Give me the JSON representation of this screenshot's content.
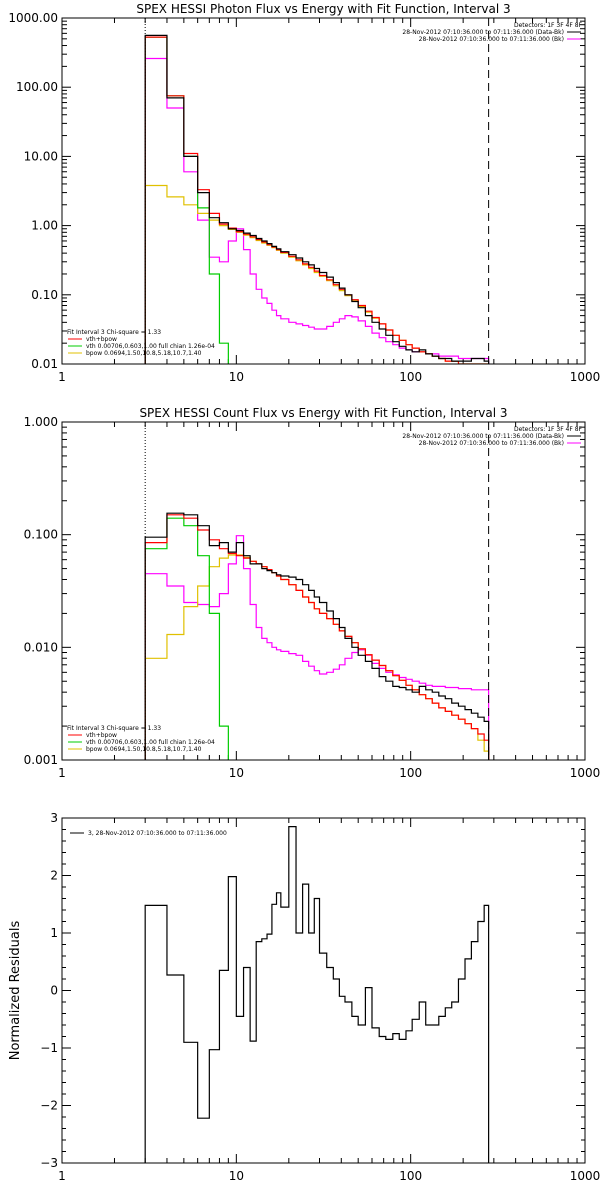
{
  "colors": {
    "data": "#000000",
    "total": "#ff0000",
    "vth": "#00cc00",
    "bpow": "#e0c000",
    "background": "#ff00ff",
    "axis": "#000000",
    "window": "#000000"
  },
  "chart_data": [
    {
      "type": "line",
      "title": "SPEX HESSI Photon Flux vs Energy with Fit Function, Interval 3",
      "xlabel": "",
      "ylabel": "",
      "xscale": "log",
      "yscale": "log",
      "xlim": [
        1,
        1000
      ],
      "ylim": [
        0.01,
        1000
      ],
      "x_ticks": [
        "1",
        "10",
        "100",
        "1000"
      ],
      "y_ticks": [
        "0.01",
        "0.10",
        "1.00",
        "10.00",
        "100.00",
        "1000.00"
      ],
      "legend_top_right": [
        "Detectors: 1F 3F 4F 8F",
        "28-Nov-2012 07:10:36.000 to 07:11:36.000 (Data-Bk)",
        "28-Nov-2012 07:10:36.000 to 07:11:36.000 (Bk)"
      ],
      "legend_bottom_left": [
        "Fit Interval 3   Chi-square = 1.33",
        "vth+bpow",
        "vth 0.00706,0.603,1.00  full chian 1.26e-04",
        "bpow 0.0694,1.50,10.8,5.18,10.7,1.40"
      ],
      "vlines": [
        {
          "x": 3,
          "style": "dotted"
        },
        {
          "x": 280,
          "style": "dashed"
        }
      ],
      "series": [
        {
          "name": "(Data-Bk)",
          "bins": [
            3,
            4,
            5,
            6,
            7,
            8,
            9,
            10,
            11,
            12,
            13,
            14,
            15,
            16,
            17,
            18,
            20,
            22,
            24,
            26,
            28,
            30,
            33,
            36,
            39,
            42,
            46,
            50,
            55,
            60,
            66,
            72,
            79,
            86,
            94,
            102,
            112,
            122,
            133,
            145,
            158,
            172,
            188,
            205,
            223,
            243,
            264,
            280
          ],
          "values": [
            560,
            70,
            10,
            3.0,
            1.3,
            1.1,
            0.9,
            0.85,
            0.78,
            0.72,
            0.65,
            0.6,
            0.55,
            0.5,
            0.46,
            0.42,
            0.38,
            0.34,
            0.3,
            0.27,
            0.24,
            0.21,
            0.18,
            0.15,
            0.125,
            0.1,
            0.08,
            0.065,
            0.05,
            0.04,
            0.032,
            0.026,
            0.021,
            0.018,
            0.016,
            0.015,
            0.016,
            0.014,
            0.013,
            0.012,
            0.012,
            0.011,
            0.011,
            0.011,
            0.012,
            0.012,
            0.011
          ]
        },
        {
          "name": "vth+bpow",
          "bins": [
            3,
            4,
            5,
            6,
            7,
            8,
            9,
            10,
            11,
            12,
            13,
            14,
            15,
            16,
            17,
            18,
            20,
            22,
            24,
            26,
            28,
            30,
            33,
            36,
            39,
            42,
            46,
            50,
            55,
            60,
            66,
            72,
            79,
            86,
            94,
            102,
            112,
            122,
            133,
            145,
            158,
            172,
            188,
            205,
            223,
            243,
            264,
            280
          ],
          "values": [
            530,
            75,
            11,
            3.3,
            1.5,
            1.05,
            0.92,
            0.82,
            0.75,
            0.69,
            0.63,
            0.58,
            0.53,
            0.49,
            0.45,
            0.41,
            0.36,
            0.32,
            0.28,
            0.25,
            0.22,
            0.19,
            0.165,
            0.14,
            0.12,
            0.1,
            0.085,
            0.07,
            0.058,
            0.047,
            0.038,
            0.031,
            0.026,
            0.022,
            0.019,
            0.017,
            0.015,
            0.014,
            0.013,
            0.012,
            0.011,
            0.011,
            0.01,
            0.01,
            0.01,
            0.01,
            0.01
          ]
        },
        {
          "name": "vth",
          "bins": [
            3,
            4,
            5,
            6,
            7,
            8,
            9
          ],
          "values": [
            530,
            75,
            10,
            1.8,
            0.2,
            0.02
          ]
        },
        {
          "name": "bpow",
          "bins": [
            3,
            4,
            5,
            6,
            7,
            8,
            9,
            10,
            11,
            12,
            13,
            14,
            15,
            16,
            17,
            18,
            20,
            22,
            24,
            26,
            28,
            30,
            33,
            36,
            39,
            42,
            46,
            50,
            55,
            60,
            66,
            72,
            79,
            86,
            94,
            102,
            112,
            122,
            133,
            145,
            158,
            172,
            188,
            205,
            223,
            243,
            264,
            280
          ],
          "values": [
            3.8,
            2.6,
            2.0,
            1.5,
            1.2,
            1.0,
            0.88,
            0.8,
            0.73,
            0.67,
            0.61,
            0.56,
            0.52,
            0.48,
            0.44,
            0.4,
            0.35,
            0.31,
            0.27,
            0.24,
            0.21,
            0.185,
            0.16,
            0.135,
            0.115,
            0.097,
            0.082,
            0.068,
            0.056,
            0.046,
            0.038,
            0.031,
            0.026,
            0.022,
            0.019,
            0.017,
            0.015,
            0.014,
            0.013,
            0.012,
            0.011,
            0.011,
            0.01,
            0.01,
            0.01,
            0.01,
            0.01
          ]
        },
        {
          "name": "(Bk)",
          "bins": [
            3,
            4,
            5,
            6,
            7,
            8,
            9,
            10,
            11,
            12,
            13,
            14,
            15,
            16,
            17,
            18,
            20,
            22,
            24,
            26,
            28,
            30,
            33,
            36,
            39,
            42,
            46,
            50,
            55,
            60,
            66,
            72,
            79,
            86,
            94,
            102,
            112,
            122,
            133,
            145,
            158,
            172,
            188,
            205,
            223,
            243,
            264,
            280
          ],
          "values": [
            260,
            50,
            6,
            1.2,
            0.35,
            0.3,
            0.6,
            0.9,
            0.45,
            0.2,
            0.12,
            0.09,
            0.075,
            0.06,
            0.05,
            0.045,
            0.04,
            0.038,
            0.036,
            0.034,
            0.032,
            0.032,
            0.035,
            0.04,
            0.045,
            0.05,
            0.048,
            0.042,
            0.035,
            0.028,
            0.024,
            0.021,
            0.019,
            0.017,
            0.016,
            0.015,
            0.015,
            0.014,
            0.014,
            0.013,
            0.013,
            0.013,
            0.012,
            0.012,
            0.012,
            0.012,
            0.012
          ]
        }
      ]
    },
    {
      "type": "line",
      "title": "SPEX HESSI Count Flux vs Energy with Fit Function, Interval 3",
      "xlabel": "",
      "ylabel": "",
      "xscale": "log",
      "yscale": "log",
      "xlim": [
        1,
        1000
      ],
      "ylim": [
        0.001,
        1
      ],
      "x_ticks": [
        "1",
        "10",
        "100",
        "1000"
      ],
      "y_ticks": [
        "0.001",
        "0.010",
        "0.100",
        "1.000"
      ],
      "legend_top_right": [
        "Detectors: 1F 3F 4F 8F",
        "28-Nov-2012 07:10:36.000 to 07:11:36.000 (Data-Bk)",
        "28-Nov-2012 07:10:36.000 to 07:11:36.000 (Bk)"
      ],
      "legend_bottom_left": [
        "Fit Interval 3   Chi-square = 1.33",
        "vth+bpow",
        "vth 0.00706,0.603,1.00  full chian 1.26e-04",
        "bpow 0.0694,1.50,10.8,5.18,10.7,1.40"
      ],
      "vlines": [
        {
          "x": 3,
          "style": "dotted"
        },
        {
          "x": 280,
          "style": "dashed"
        }
      ],
      "series": [
        {
          "name": "(Data-Bk)",
          "bins": [
            3,
            4,
            5,
            6,
            7,
            8,
            9,
            10,
            11,
            12,
            13,
            14,
            15,
            16,
            17,
            18,
            20,
            22,
            24,
            26,
            28,
            30,
            33,
            36,
            39,
            42,
            46,
            50,
            55,
            60,
            66,
            72,
            79,
            86,
            94,
            102,
            112,
            122,
            133,
            145,
            158,
            172,
            188,
            205,
            223,
            243,
            264,
            280
          ],
          "values": [
            0.095,
            0.155,
            0.15,
            0.12,
            0.08,
            0.085,
            0.07,
            0.085,
            0.065,
            0.055,
            0.055,
            0.05,
            0.048,
            0.046,
            0.044,
            0.043,
            0.042,
            0.04,
            0.036,
            0.032,
            0.028,
            0.025,
            0.021,
            0.018,
            0.015,
            0.012,
            0.01,
            0.0085,
            0.0075,
            0.0065,
            0.0055,
            0.005,
            0.0045,
            0.0044,
            0.0042,
            0.004,
            0.0045,
            0.0042,
            0.004,
            0.0037,
            0.0035,
            0.0032,
            0.003,
            0.0028,
            0.0026,
            0.0024,
            0.0022
          ]
        },
        {
          "name": "vth+bpow",
          "bins": [
            3,
            4,
            5,
            6,
            7,
            8,
            9,
            10,
            11,
            12,
            13,
            14,
            15,
            16,
            17,
            18,
            20,
            22,
            24,
            26,
            28,
            30,
            33,
            36,
            39,
            42,
            46,
            50,
            55,
            60,
            66,
            72,
            79,
            86,
            94,
            102,
            112,
            122,
            133,
            145,
            158,
            172,
            188,
            205,
            223,
            243,
            264,
            280
          ],
          "values": [
            0.085,
            0.15,
            0.14,
            0.11,
            0.09,
            0.075,
            0.068,
            0.065,
            0.062,
            0.058,
            0.055,
            0.052,
            0.049,
            0.046,
            0.043,
            0.04,
            0.036,
            0.032,
            0.028,
            0.025,
            0.022,
            0.02,
            0.018,
            0.016,
            0.014,
            0.0125,
            0.011,
            0.0097,
            0.0086,
            0.0077,
            0.0069,
            0.0062,
            0.0056,
            0.0051,
            0.0046,
            0.0042,
            0.0038,
            0.0035,
            0.0032,
            0.0029,
            0.0027,
            0.0025,
            0.0023,
            0.0021,
            0.0019,
            0.0017,
            0.0015
          ]
        },
        {
          "name": "vth",
          "bins": [
            3,
            4,
            5,
            6,
            7,
            8,
            9
          ],
          "values": [
            0.075,
            0.14,
            0.12,
            0.065,
            0.02,
            0.002
          ]
        },
        {
          "name": "bpow",
          "bins": [
            3,
            4,
            5,
            6,
            7,
            8,
            9,
            10,
            11,
            12,
            13,
            14,
            15,
            16,
            17,
            18,
            20,
            22,
            24,
            26,
            28,
            30,
            33,
            36,
            39,
            42,
            46,
            50,
            55,
            60,
            66,
            72,
            79,
            86,
            94,
            102,
            112,
            122,
            133,
            145,
            158,
            172,
            188,
            205,
            223,
            243,
            264,
            280
          ],
          "values": [
            0.008,
            0.013,
            0.023,
            0.035,
            0.052,
            0.062,
            0.066,
            0.066,
            0.063,
            0.058,
            0.055,
            0.052,
            0.049,
            0.046,
            0.043,
            0.04,
            0.036,
            0.032,
            0.028,
            0.025,
            0.022,
            0.02,
            0.018,
            0.016,
            0.014,
            0.0125,
            0.011,
            0.0097,
            0.0086,
            0.0077,
            0.0069,
            0.0062,
            0.0056,
            0.0051,
            0.0046,
            0.0042,
            0.0038,
            0.0035,
            0.0032,
            0.0029,
            0.0027,
            0.0025,
            0.0023,
            0.0021,
            0.0019,
            0.0015,
            0.0012
          ]
        },
        {
          "name": "(Bk)",
          "bins": [
            3,
            4,
            5,
            6,
            7,
            8,
            9,
            10,
            11,
            12,
            13,
            14,
            15,
            16,
            17,
            18,
            20,
            22,
            24,
            26,
            28,
            30,
            33,
            36,
            39,
            42,
            46,
            50,
            55,
            60,
            66,
            72,
            79,
            86,
            94,
            102,
            112,
            122,
            133,
            145,
            158,
            172,
            188,
            205,
            223,
            243,
            264,
            280
          ],
          "values": [
            0.045,
            0.035,
            0.025,
            0.024,
            0.023,
            0.03,
            0.055,
            0.098,
            0.05,
            0.024,
            0.015,
            0.012,
            0.011,
            0.01,
            0.0095,
            0.0092,
            0.0088,
            0.0085,
            0.0075,
            0.0068,
            0.0062,
            0.0058,
            0.006,
            0.0064,
            0.007,
            0.008,
            0.009,
            0.0095,
            0.0085,
            0.0072,
            0.0065,
            0.006,
            0.0057,
            0.0054,
            0.0052,
            0.005,
            0.0048,
            0.0046,
            0.0045,
            0.0045,
            0.0044,
            0.0044,
            0.0043,
            0.0043,
            0.0042,
            0.0042,
            0.0042
          ]
        }
      ]
    },
    {
      "type": "line",
      "title": "",
      "xlabel": "",
      "ylabel": "Normalized Residuals",
      "xscale": "log",
      "yscale": "linear",
      "xlim": [
        1,
        1000
      ],
      "ylim": [
        -3,
        3
      ],
      "x_ticks": [
        "1",
        "10",
        "100",
        "1000"
      ],
      "y_ticks": [
        "3",
        "2",
        "1",
        "0",
        "-1",
        "-2",
        "-3"
      ],
      "legend_top_left": [
        "3, 28-Nov-2012 07:10:36.000 to 07:11:36.000"
      ],
      "series": [
        {
          "name": "3, 28-Nov-2012 07:10:36.000 to 07:11:36.000",
          "bins": [
            3,
            4,
            5,
            6,
            7,
            8,
            9,
            10,
            11,
            12,
            13,
            14,
            15,
            16,
            17,
            18,
            20,
            22,
            24,
            26,
            28,
            30,
            33,
            36,
            39,
            42,
            46,
            50,
            55,
            60,
            66,
            72,
            79,
            86,
            94,
            102,
            112,
            122,
            133,
            145,
            158,
            172,
            188,
            205,
            223,
            243,
            264,
            280
          ],
          "values": [
            1.48,
            0.27,
            -0.9,
            -2.22,
            -1.03,
            0.35,
            1.98,
            -0.45,
            0.4,
            -0.88,
            0.85,
            0.9,
            0.98,
            1.5,
            1.7,
            1.45,
            2.85,
            1.0,
            1.85,
            1.0,
            1.6,
            0.65,
            0.4,
            0.2,
            -0.1,
            -0.2,
            -0.45,
            -0.6,
            0.05,
            -0.65,
            -0.8,
            -0.85,
            -0.75,
            -0.85,
            -0.7,
            -0.5,
            -0.2,
            -0.6,
            -0.6,
            -0.45,
            -0.3,
            -0.2,
            0.2,
            0.55,
            0.85,
            1.2,
            1.48
          ]
        }
      ]
    }
  ]
}
